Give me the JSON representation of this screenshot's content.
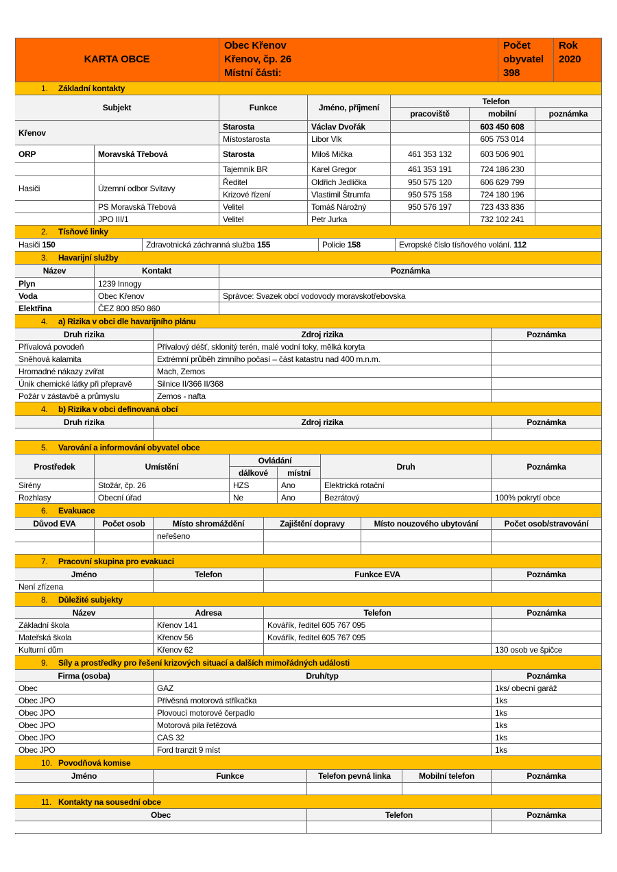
{
  "header": {
    "title": "KARTA OBCE",
    "obec_name": "Obec Křenov",
    "address": "Křenov, čp. 26",
    "parts": "Místní části:",
    "population_label_1": "Počet",
    "population_label_2": "obyvatel",
    "population": "398",
    "year_label": "Rok",
    "year": "2020",
    "color": "#ff6600"
  },
  "section_color": "#ffc000",
  "s1": {
    "num": "1.",
    "title": "Základní kontakty",
    "headers": {
      "subject": "Subjekt",
      "function": "Funkce",
      "name": "Jméno, příjmení",
      "phone": "Telefon",
      "work": "pracoviště",
      "mobile": "mobilní",
      "note": "poznámka"
    },
    "rows": [
      {
        "subject": "Křenov",
        "unit": "",
        "function": "Starosta",
        "name": "Václav Dvořák",
        "work": "",
        "mobile": "603 450 608",
        "note": ""
      },
      {
        "subject": "",
        "unit": "",
        "function": "Místostarosta",
        "name": "Libor Vlk",
        "work": "",
        "mobile": "605 753 014",
        "note": ""
      },
      {
        "subject": "ORP",
        "unit": "Moravská Třebová",
        "function": "Starosta",
        "name": "Miloš Mička",
        "work": "461 353 132",
        "mobile": "603 506 901",
        "note": ""
      },
      {
        "subject": "",
        "unit": "",
        "function": "Tajemník BR",
        "name": "Karel Gregor",
        "work": "461 353 191",
        "mobile": "724 186 230",
        "note": ""
      },
      {
        "subject": "Hasiči",
        "unit": "Územní odbor Svitavy",
        "function": "Ředitel",
        "name": "Oldřich Jedlička",
        "work": "950 575 120",
        "mobile": "606 629 799",
        "note": ""
      },
      {
        "subject": "",
        "unit": "",
        "function": "Krizové řízení",
        "name": "Vlastimil Štrumfa",
        "work": "950 575 158",
        "mobile": "724 180 196",
        "note": ""
      },
      {
        "subject": "",
        "unit": "PS Moravská Třebová",
        "function": "Velitel",
        "name": "Tomáš Nárožný",
        "work": "950 576 197",
        "mobile": "723 433 836",
        "note": ""
      },
      {
        "subject": "",
        "unit": "JPO  III/1",
        "function": "Velitel",
        "name": "Petr Jurka",
        "work": "",
        "mobile": "732 102 241",
        "note": ""
      }
    ]
  },
  "s2": {
    "num": "2.",
    "title": "Tísňové linky",
    "items": [
      {
        "label": "Hasiči ",
        "number": "150"
      },
      {
        "label": "Zdravotnická záchranná služba ",
        "number": "155"
      },
      {
        "label": "Policie ",
        "number": "158"
      },
      {
        "label": "Evropské číslo tísňového volání. ",
        "number": "112"
      }
    ]
  },
  "s3": {
    "num": "3.",
    "title": "Havarijní služby",
    "headers": [
      "Název",
      "Kontakt",
      "Poznámka"
    ],
    "rows": [
      [
        "Plyn",
        "1239 Innogy",
        ""
      ],
      [
        "Voda",
        "Obec Křenov",
        "Správce: Svazek obcí vodovody moravskotřebovska"
      ],
      [
        "Elektřina",
        "ČEZ 800 850 860",
        ""
      ]
    ]
  },
  "s4a": {
    "num": "4.",
    "title": "a) Rizika v obci dle havarijního plánu",
    "headers": [
      "Druh rizika",
      "Zdroj rizika",
      "Poznámka"
    ],
    "rows": [
      [
        "Přívalová povodeň",
        "Přívalový déšť, sklonitý terén, malé vodní toky, mělká koryta",
        ""
      ],
      [
        "Sněhová kalamita",
        "Extrémní průběh zimního počasí – část katastru nad 400 m.n.m.",
        ""
      ],
      [
        "Hromadné nákazy zvířat",
        "Mach, Zemos",
        ""
      ],
      [
        "Únik chemické látky při přepravě",
        "Silnice II/366  II/368",
        ""
      ],
      [
        "Požár v zástavbě a průmyslu",
        "Zemos - nafta",
        ""
      ]
    ]
  },
  "s4b": {
    "num": "4.",
    "title": "b) Rizika v obci definovaná obcí",
    "headers": [
      "Druh rizika",
      "Zdroj rizika",
      "Poznámka"
    ],
    "rows": [
      [
        "",
        "",
        ""
      ]
    ]
  },
  "s5": {
    "num": "5.",
    "title": "Varování a informování obyvatel obce",
    "headers": {
      "means": "Prostředek",
      "location": "Umístění",
      "control": "Ovládání",
      "remote": "dálkové",
      "local": "místní",
      "type": "Druh",
      "note": "Poznámka"
    },
    "rows": [
      [
        "Sirény",
        "Stožár, čp. 26",
        "HZS",
        "Ano",
        "Elektrická rotační",
        ""
      ],
      [
        "Rozhlasy",
        "Obecní úřad",
        "Ne",
        "Ano",
        "Bezrátový",
        "100% pokrytí obce"
      ]
    ]
  },
  "s6": {
    "num": "6.",
    "title": "Evakuace",
    "headers": [
      "Důvod EVA",
      "Počet osob",
      "Místo shromáždění",
      "Zajištění dopravy",
      "Místo nouzového ubytování",
      "Počet osob/stravování"
    ],
    "rows": [
      [
        "",
        "",
        "neřešeno",
        "",
        "",
        ""
      ],
      [
        "",
        "",
        "",
        "",
        "",
        ""
      ]
    ]
  },
  "s7": {
    "num": "7.",
    "title": "Pracovní skupina pro evakuaci",
    "headers": [
      "Jméno",
      "Telefon",
      "Funkce EVA",
      "Poznámka"
    ],
    "rows": [
      [
        "Není zřízena",
        "",
        "",
        ""
      ]
    ]
  },
  "s8": {
    "num": "8.",
    "title": "Důležité subjekty",
    "headers": [
      "Název",
      "Adresa",
      "Telefon",
      "Poznámka"
    ],
    "rows": [
      [
        "Základní škola",
        "Křenov 141",
        "Kovářík, ředitel 605 767 095",
        ""
      ],
      [
        "Mateřská škola",
        "Křenov 56",
        "Kovářík, ředitel 605 767 095",
        ""
      ],
      [
        "Kulturní dům",
        "Křenov 62",
        "",
        "130 osob ve špičce"
      ]
    ]
  },
  "s9": {
    "num": "9.",
    "title": "Síly a prostředky pro řešení krizových situací a dalších mimořádných události",
    "headers": [
      "Firma (osoba)",
      "Druh/typ",
      "Poznámka"
    ],
    "rows": [
      [
        "Obec",
        "GAZ",
        "1ks/ obecní garáž"
      ],
      [
        "Obec JPO",
        "Přívěsná motorová stříkačka",
        "1ks"
      ],
      [
        "Obec JPO",
        "Plovoucí motorové čerpadlo",
        "1ks"
      ],
      [
        "Obec JPO",
        "Motorová pila řetězová",
        "1ks"
      ],
      [
        "Obec JPO",
        "CAS 32",
        "1ks"
      ],
      [
        "Obec JPO",
        "Ford tranzit 9 míst",
        "1ks"
      ]
    ]
  },
  "s10": {
    "num": "10.",
    "title": "Povodňová komise",
    "headers": [
      "Jméno",
      "Funkce",
      "Telefon pevná linka",
      "Mobilní telefon",
      "Poznámka"
    ],
    "rows": [
      [
        "",
        "",
        "",
        "",
        ""
      ]
    ]
  },
  "s11": {
    "num": "11.",
    "title": "Kontakty na sousední obce",
    "headers": [
      "Obec",
      "Telefon",
      "Poznámka"
    ],
    "rows": [
      [
        "",
        "",
        ""
      ]
    ]
  }
}
